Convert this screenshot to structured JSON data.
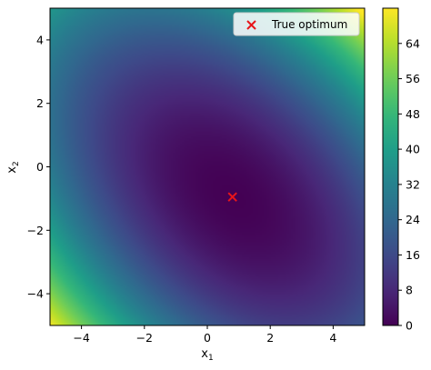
{
  "chart_data": {
    "type": "heatmap",
    "title": "",
    "xlabel": "x",
    "xlabel_sub": "1",
    "ylabel": "x",
    "ylabel_sub": "2",
    "xlim": [
      -5,
      5
    ],
    "ylim": [
      -5,
      5
    ],
    "xticks": [
      -4,
      -2,
      0,
      2,
      4
    ],
    "yticks": [
      -4,
      -2,
      0,
      2,
      4
    ],
    "xtick_labels": [
      "−4",
      "−2",
      "0",
      "2",
      "4"
    ],
    "ytick_labels": [
      "−4",
      "−2",
      "0",
      "2",
      "4"
    ],
    "colormap": "viridis",
    "colorbar": {
      "min": 0,
      "max": 72,
      "ticks": [
        0,
        8,
        16,
        24,
        32,
        40,
        48,
        56,
        64
      ],
      "tick_labels": [
        "0",
        "8",
        "16",
        "24",
        "32",
        "40",
        "48",
        "56",
        "64"
      ]
    },
    "optimum": {
      "x": 0.8,
      "y": -0.95,
      "marker": "x",
      "color": "#e8151b"
    },
    "field": {
      "form": "quadratic",
      "center": [
        0.8,
        -0.95
      ],
      "a": 1.0,
      "b": 0.9,
      "c": 1.0
    },
    "legend": {
      "position": "top-right",
      "entries": [
        {
          "label": "True optimum",
          "marker": "x",
          "color": "#e8151b"
        }
      ]
    }
  }
}
